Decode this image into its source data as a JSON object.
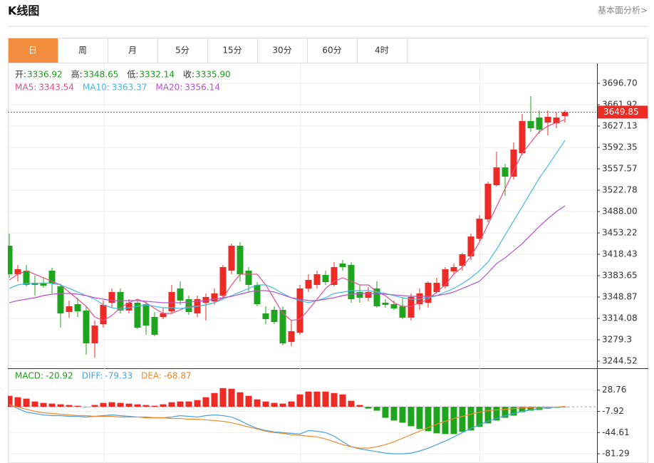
{
  "header": {
    "title": "K线图",
    "link": "基本面分析>"
  },
  "tabs": [
    "日",
    "周",
    "月",
    "5分",
    "15分",
    "30分",
    "60分",
    "4时"
  ],
  "active_tab": 0,
  "info": [
    {
      "label": "开:",
      "value": "3336.92"
    },
    {
      "label": "高:",
      "value": "3348.65"
    },
    {
      "label": "低:",
      "value": "3332.14"
    },
    {
      "label": "收:",
      "value": "3335.90"
    }
  ],
  "chart_data": [
    {
      "type": "candlestick",
      "up_color": "#ee2a24",
      "down_color": "#1ea51e",
      "open": [
        3432.4,
        3386.0,
        3391.8,
        3372.1,
        3370.9,
        3391.8,
        3366.3,
        3324.5,
        3337.3,
        3326.9,
        3273.5,
        3304.8,
        3339.6,
        3357.0,
        3326.9,
        3339.6,
        3337.3,
        3316.4,
        3316.4,
        3325.7,
        3362.8,
        3345.4,
        3322.2,
        3339.6,
        3341.9,
        3351.2,
        3391.8,
        3432.4,
        3391.8,
        3368.6,
        3322.2,
        3328.0,
        3328.0,
        3275.8,
        3290.9,
        3362.8,
        3368.6,
        3384.8,
        3368.6,
        3403.4,
        3401.1,
        3357.0,
        3347.7,
        3362.8,
        3339.6,
        3337.3,
        3333.8,
        3315.3,
        3337.3,
        3339.6,
        3357.0,
        3366.3,
        3390.6,
        3399.9,
        3415.0,
        3444.0,
        3475.3,
        3530.9,
        3559.9,
        3544.8,
        3583.1,
        3635.3,
        3641.1,
        3632.9,
        3631.8,
        3643.4
      ],
      "high": [
        3452.1,
        3401.1,
        3401.1,
        3383.7,
        3380.2,
        3396.4,
        3370.9,
        3343.1,
        3347.7,
        3333.8,
        3310.6,
        3343.1,
        3362.8,
        3362.8,
        3345.4,
        3345.4,
        3341.9,
        3324.5,
        3331.5,
        3368.6,
        3374.4,
        3351.2,
        3351.2,
        3354.7,
        3362.8,
        3401.1,
        3435.8,
        3438.2,
        3397.6,
        3373.2,
        3333.8,
        3333.8,
        3333.8,
        3310.6,
        3368.6,
        3386.0,
        3391.8,
        3391.8,
        3405.7,
        3409.2,
        3405.7,
        3368.6,
        3365.1,
        3374.4,
        3345.4,
        3343.1,
        3347.7,
        3354.7,
        3362.8,
        3374.4,
        3380.2,
        3397.6,
        3403.4,
        3420.8,
        3452.1,
        3482.2,
        3536.7,
        3585.4,
        3565.7,
        3600.5,
        3646.8,
        3675.8,
        3652.6,
        3652.6,
        3649.2,
        3652.6
      ],
      "low": [
        3380.2,
        3374.4,
        3366.3,
        3351.2,
        3364.0,
        3354.7,
        3299.0,
        3315.3,
        3316.4,
        3255.0,
        3250.3,
        3299.0,
        3331.5,
        3322.2,
        3322.2,
        3296.7,
        3287.4,
        3285.1,
        3312.9,
        3322.2,
        3336.1,
        3319.9,
        3316.4,
        3310.6,
        3336.1,
        3345.4,
        3386.0,
        3374.4,
        3357.0,
        3333.8,
        3304.8,
        3304.8,
        3270.0,
        3268.9,
        3287.4,
        3357.0,
        3362.8,
        3368.6,
        3366.3,
        3391.8,
        3339.6,
        3339.6,
        3341.9,
        3331.5,
        3331.5,
        3328.0,
        3312.9,
        3310.6,
        3328.0,
        3331.5,
        3354.7,
        3362.8,
        3386.0,
        3391.8,
        3409.2,
        3440.5,
        3470.6,
        3528.6,
        3513.5,
        3540.2,
        3579.6,
        3617.9,
        3614.4,
        3612.1,
        3623.7,
        3632.9
      ],
      "close": [
        3386.0,
        3394.1,
        3368.6,
        3368.6,
        3367.4,
        3370.9,
        3322.2,
        3333.8,
        3325.7,
        3273.5,
        3302.5,
        3336.1,
        3357.0,
        3326.9,
        3339.6,
        3299.0,
        3302.5,
        3287.4,
        3322.2,
        3357.0,
        3343.1,
        3324.5,
        3345.4,
        3348.9,
        3354.7,
        3397.6,
        3432.4,
        3386.0,
        3368.6,
        3337.3,
        3312.9,
        3308.3,
        3273.5,
        3293.2,
        3362.8,
        3376.7,
        3386.0,
        3373.2,
        3397.6,
        3397.6,
        3345.4,
        3347.7,
        3357.0,
        3333.8,
        3336.1,
        3330.3,
        3315.3,
        3348.9,
        3354.7,
        3372.1,
        3372.1,
        3394.1,
        3397.6,
        3418.4,
        3447.4,
        3476.4,
        3533.2,
        3559.9,
        3544.8,
        3588.9,
        3635.3,
        3623.7,
        3621.3,
        3642.2,
        3641.1,
        3649.85
      ],
      "series": [
        {
          "name": "MA5:",
          "current": "3343.54",
          "color": "#e8508a",
          "values": [
            3376.7,
            3386.0,
            3391.8,
            3386.0,
            3380.2,
            3374.4,
            3368.6,
            3357.0,
            3345.4,
            3333.8,
            3316.4,
            3310.6,
            3318.7,
            3331.5,
            3339.6,
            3345.4,
            3339.6,
            3330.3,
            3322.2,
            3322.2,
            3328.0,
            3333.8,
            3333.8,
            3336.1,
            3339.6,
            3347.7,
            3368.6,
            3386.0,
            3386.0,
            3386.0,
            3368.6,
            3345.4,
            3322.2,
            3310.6,
            3312.9,
            3328.0,
            3345.4,
            3362.8,
            3374.4,
            3380.2,
            3374.4,
            3368.6,
            3368.6,
            3357.0,
            3351.2,
            3339.6,
            3333.8,
            3333.8,
            3339.6,
            3345.4,
            3357.0,
            3368.6,
            3386.0,
            3397.6,
            3415.0,
            3438.2,
            3467.1,
            3496.1,
            3525.1,
            3554.1,
            3583.1,
            3600.5,
            3617.9,
            3627.1,
            3632.9,
            3637.6
          ]
        },
        {
          "name": "MA10:",
          "current": "3363.37",
          "color": "#45bde3",
          "values": [
            3362.8,
            3368.6,
            3370.9,
            3370.9,
            3372.1,
            3370.9,
            3368.6,
            3362.8,
            3357.0,
            3351.2,
            3345.4,
            3336.1,
            3331.5,
            3329.2,
            3331.5,
            3333.8,
            3336.1,
            3333.8,
            3331.5,
            3331.5,
            3330.3,
            3331.5,
            3333.8,
            3336.1,
            3339.6,
            3345.4,
            3351.2,
            3357.0,
            3362.8,
            3368.6,
            3368.6,
            3362.8,
            3354.7,
            3347.7,
            3343.1,
            3339.6,
            3343.1,
            3347.7,
            3354.7,
            3357.0,
            3359.3,
            3359.3,
            3359.3,
            3357.0,
            3354.7,
            3351.2,
            3347.7,
            3345.4,
            3345.4,
            3347.7,
            3351.2,
            3357.0,
            3362.8,
            3370.9,
            3380.2,
            3391.8,
            3405.7,
            3426.6,
            3449.8,
            3472.9,
            3496.1,
            3519.3,
            3542.5,
            3562.2,
            3583.1,
            3603.9
          ]
        },
        {
          "name": "MA20:",
          "current": "3356.14",
          "color": "#b455c8",
          "values": [
            3339.6,
            3343.1,
            3345.4,
            3347.7,
            3351.2,
            3353.5,
            3354.7,
            3354.7,
            3353.5,
            3351.2,
            3347.7,
            3345.4,
            3343.1,
            3343.1,
            3343.1,
            3343.1,
            3341.9,
            3340.8,
            3339.6,
            3339.6,
            3339.6,
            3340.8,
            3341.9,
            3343.1,
            3345.4,
            3347.7,
            3350.0,
            3353.5,
            3357.0,
            3359.3,
            3359.3,
            3357.0,
            3352.4,
            3347.7,
            3345.4,
            3343.1,
            3343.1,
            3345.4,
            3347.7,
            3351.2,
            3353.5,
            3354.7,
            3354.7,
            3354.7,
            3353.5,
            3352.4,
            3351.2,
            3350.0,
            3350.0,
            3350.0,
            3351.2,
            3353.5,
            3357.0,
            3362.8,
            3368.6,
            3374.4,
            3388.3,
            3403.4,
            3412.7,
            3424.2,
            3435.8,
            3449.8,
            3463.7,
            3476.4,
            3488.0,
            3497.3
          ]
        }
      ],
      "last_price": 3649.85,
      "last_price_color": "#ee2a24",
      "ylim": [
        3232.93,
        3728.0
      ],
      "yticks": [
        {
          "value": 3696.7,
          "label": "3696.70"
        },
        3661.92,
        3627.13,
        3592.35,
        3557.57,
        3522.78,
        {
          "value": 3488,
          "label": "3488.00"
        },
        3453.22,
        3418.43,
        3383.65,
        3348.87,
        3314.08,
        3279.3,
        3244.52
      ],
      "grid": true
    },
    {
      "type": "macd",
      "up_color": "#ee2a24",
      "down_color": "#1ea51e",
      "bar": {
        "name": "MACD:",
        "current": "-20.92",
        "color": "#1a9e1a",
        "values": [
          19.0,
          16.5,
          14.1,
          9.2,
          6.7,
          5.5,
          4.3,
          3.1,
          1.8,
          -0.6,
          3.1,
          6.7,
          7.9,
          6.7,
          5.5,
          4.3,
          3.1,
          1.8,
          4.3,
          7.9,
          9.2,
          9.2,
          11.6,
          16.5,
          23.8,
          32.4,
          31.2,
          25.1,
          19.0,
          12.8,
          9.2,
          6.7,
          5.5,
          9.2,
          21.4,
          26.3,
          26.3,
          26.3,
          23.8,
          21.4,
          10.4,
          3.1,
          -3.1,
          -6.7,
          -19.0,
          -23.8,
          -27.5,
          -33.6,
          -38.5,
          -42.2,
          -45.9,
          -47.1,
          -47.1,
          -43.4,
          -41.0,
          -34.8,
          -28.7,
          -23.8,
          -19.0,
          -15.3,
          -9.2,
          -6.7,
          -5.5,
          -3.1,
          -1.8,
          -0.6
        ]
      },
      "series": [
        {
          "name": "DIFF:",
          "current": "-79.33",
          "color": "#4aa3df",
          "values": [
            4.3,
            -3.1,
            -9.2,
            -11.6,
            -14.1,
            -15.3,
            -15.3,
            -16.5,
            -16.5,
            -17.7,
            -16.5,
            -15.3,
            -14.1,
            -15.3,
            -16.5,
            -17.7,
            -17.7,
            -19.0,
            -19.0,
            -17.7,
            -15.3,
            -16.5,
            -17.7,
            -15.3,
            -14.1,
            -15.3,
            -17.7,
            -23.8,
            -31.2,
            -37.3,
            -41.0,
            -43.4,
            -44.6,
            -45.9,
            -47.1,
            -41.0,
            -42.2,
            -44.6,
            -50.7,
            -60.5,
            -69.1,
            -72.8,
            -75.2,
            -77.6,
            -80.1,
            -81.3,
            -81.3,
            -80.1,
            -76.4,
            -71.5,
            -65.4,
            -59.3,
            -52.0,
            -44.6,
            -37.3,
            -31.2,
            -25.1,
            -20.2,
            -15.3,
            -11.6,
            -7.9,
            -5.5,
            -3.1,
            -1.8,
            -0.6,
            -0.6
          ]
        },
        {
          "name": "DEA:",
          "current": "-68.87",
          "color": "#f08a2a",
          "values": [
            3.1,
            -0.6,
            -4.3,
            -7.9,
            -10.4,
            -11.6,
            -12.8,
            -14.1,
            -15.3,
            -15.3,
            -16.5,
            -16.5,
            -16.5,
            -17.7,
            -17.7,
            -17.7,
            -19.0,
            -19.0,
            -19.0,
            -20.2,
            -20.2,
            -21.4,
            -21.4,
            -22.6,
            -23.8,
            -25.1,
            -27.5,
            -31.2,
            -34.8,
            -38.5,
            -42.2,
            -44.6,
            -45.9,
            -48.3,
            -49.5,
            -50.7,
            -52.0,
            -55.6,
            -60.5,
            -65.4,
            -69.1,
            -71.5,
            -71.5,
            -69.1,
            -65.4,
            -60.5,
            -54.4,
            -48.3,
            -42.2,
            -36.1,
            -30.0,
            -25.1,
            -20.2,
            -16.5,
            -12.8,
            -9.2,
            -6.7,
            -5.5,
            -4.3,
            -3.1,
            -1.8,
            -1.8,
            -0.6,
            -0.6,
            -0.6,
            0.6
          ]
        }
      ],
      "ylim": [
        -97.2,
        65.4
      ],
      "yticks": [
        28.76,
        -7.92,
        -44.61,
        -81.29
      ],
      "grid": true
    }
  ]
}
